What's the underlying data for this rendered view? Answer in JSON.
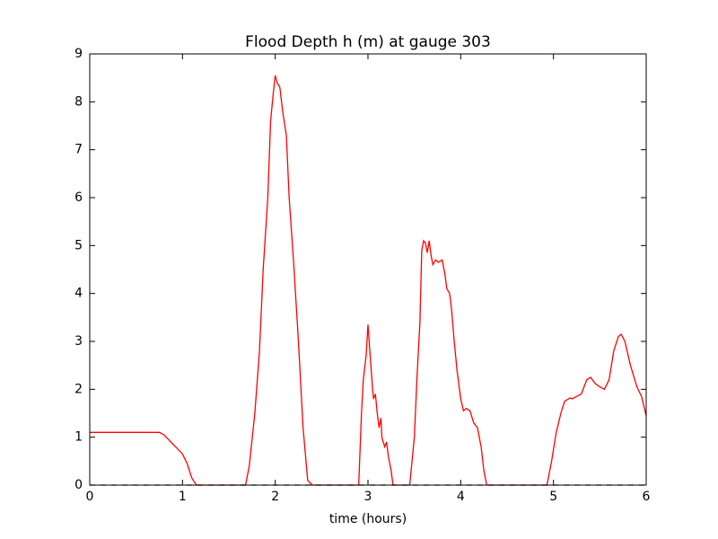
{
  "chart_data": {
    "type": "line",
    "title": "Flood Depth h (m) at gauge 303",
    "xlabel": "time (hours)",
    "xlim": [
      0,
      6
    ],
    "ylim": [
      0,
      9
    ],
    "xticks": [
      0,
      1,
      2,
      3,
      4,
      5,
      6
    ],
    "yticks": [
      0,
      1,
      2,
      3,
      4,
      5,
      6,
      7,
      8,
      9
    ],
    "grid": false,
    "series": [
      {
        "color": "#ff0000",
        "dash": "solid",
        "x": [
          0,
          0.5,
          0.75,
          0.8,
          0.9,
          1.0,
          1.05,
          1.1,
          1.15,
          1.68,
          1.72,
          1.78,
          1.83,
          1.87,
          1.92,
          1.95,
          1.98,
          2.0,
          2.02,
          2.05,
          2.08,
          2.12,
          2.15,
          2.2,
          2.25,
          2.3,
          2.35,
          2.4,
          2.9,
          2.93,
          2.95,
          2.98,
          3.0,
          3.02,
          3.05,
          3.06,
          3.08,
          3.1,
          3.12,
          3.14,
          3.15,
          3.18,
          3.2,
          3.22,
          3.25,
          3.27,
          3.45,
          3.5,
          3.53,
          3.56,
          3.58,
          3.6,
          3.62,
          3.64,
          3.66,
          3.68,
          3.7,
          3.73,
          3.76,
          3.8,
          3.83,
          3.85,
          3.88,
          3.9,
          3.93,
          3.96,
          4.0,
          4.03,
          4.06,
          4.1,
          4.14,
          4.18,
          4.22,
          4.25,
          4.28,
          4.93,
          4.98,
          5.03,
          5.08,
          5.12,
          5.18,
          5.2,
          5.25,
          5.3,
          5.33,
          5.36,
          5.4,
          5.45,
          5.5,
          5.55,
          5.6,
          5.65,
          5.7,
          5.73,
          5.77,
          5.83,
          5.9,
          5.95,
          6.0
        ],
        "values": [
          1.1,
          1.1,
          1.1,
          1.05,
          0.85,
          0.65,
          0.45,
          0.15,
          0,
          0,
          0.4,
          1.5,
          2.8,
          4.5,
          6.0,
          7.6,
          8.2,
          8.55,
          8.4,
          8.3,
          7.8,
          7.3,
          6.0,
          4.6,
          3.0,
          1.2,
          0.1,
          0,
          0,
          1.5,
          2.2,
          2.7,
          3.35,
          2.8,
          2.0,
          1.8,
          1.9,
          1.5,
          1.2,
          1.4,
          1.0,
          0.8,
          0.9,
          0.6,
          0.3,
          0,
          0,
          1.0,
          2.3,
          3.4,
          4.9,
          5.1,
          5.05,
          4.85,
          5.1,
          4.8,
          4.6,
          4.7,
          4.65,
          4.7,
          4.4,
          4.1,
          4.0,
          3.7,
          3.0,
          2.4,
          1.8,
          1.55,
          1.6,
          1.55,
          1.3,
          1.2,
          0.8,
          0.3,
          0,
          0,
          0.5,
          1.1,
          1.5,
          1.75,
          1.82,
          1.8,
          1.85,
          1.9,
          2.05,
          2.2,
          2.25,
          2.12,
          2.05,
          2.0,
          2.2,
          2.8,
          3.1,
          3.15,
          3.0,
          2.5,
          2.05,
          1.85,
          1.45
        ]
      },
      {
        "color": "#000000",
        "dash": "dashed",
        "x": [
          0,
          6
        ],
        "values": [
          0,
          0
        ]
      }
    ]
  }
}
